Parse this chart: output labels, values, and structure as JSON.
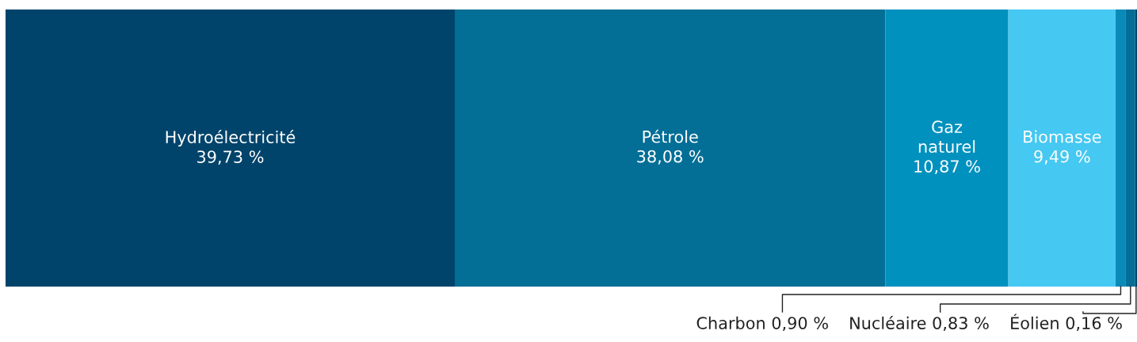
{
  "chart_data": {
    "type": "bar",
    "orientation": "horizontal",
    "stacked": true,
    "categories": [
      null
    ],
    "data_labels": true,
    "series": [
      {
        "name": "Hydroélectricité",
        "color": "#00446b",
        "values": [
          39.73
        ],
        "value_labels": [
          "39,73 %"
        ]
      },
      {
        "name": "Pétrole",
        "color": "#036e96",
        "values": [
          38.08
        ],
        "value_labels": [
          "38,08 %"
        ]
      },
      {
        "name": "Gaz naturel",
        "color": "#0091bf",
        "values": [
          10.87
        ],
        "value_labels": [
          "10,87 %"
        ]
      },
      {
        "name": "Biomasse",
        "color": "#45c8f2",
        "values": [
          9.49
        ],
        "value_labels": [
          "9,49 %"
        ]
      },
      {
        "name": "Charbon",
        "color": "#0a8ab8",
        "values": [
          0.9
        ],
        "value_labels": [
          "0,90 %"
        ]
      },
      {
        "name": "Nucléaire",
        "color": "#046e96",
        "values": [
          0.83
        ],
        "value_labels": [
          "0,83 %"
        ]
      },
      {
        "name": "Éolien",
        "color": "#00446b",
        "values": [
          0.16
        ],
        "value_labels": [
          "0,16 %"
        ]
      }
    ]
  }
}
